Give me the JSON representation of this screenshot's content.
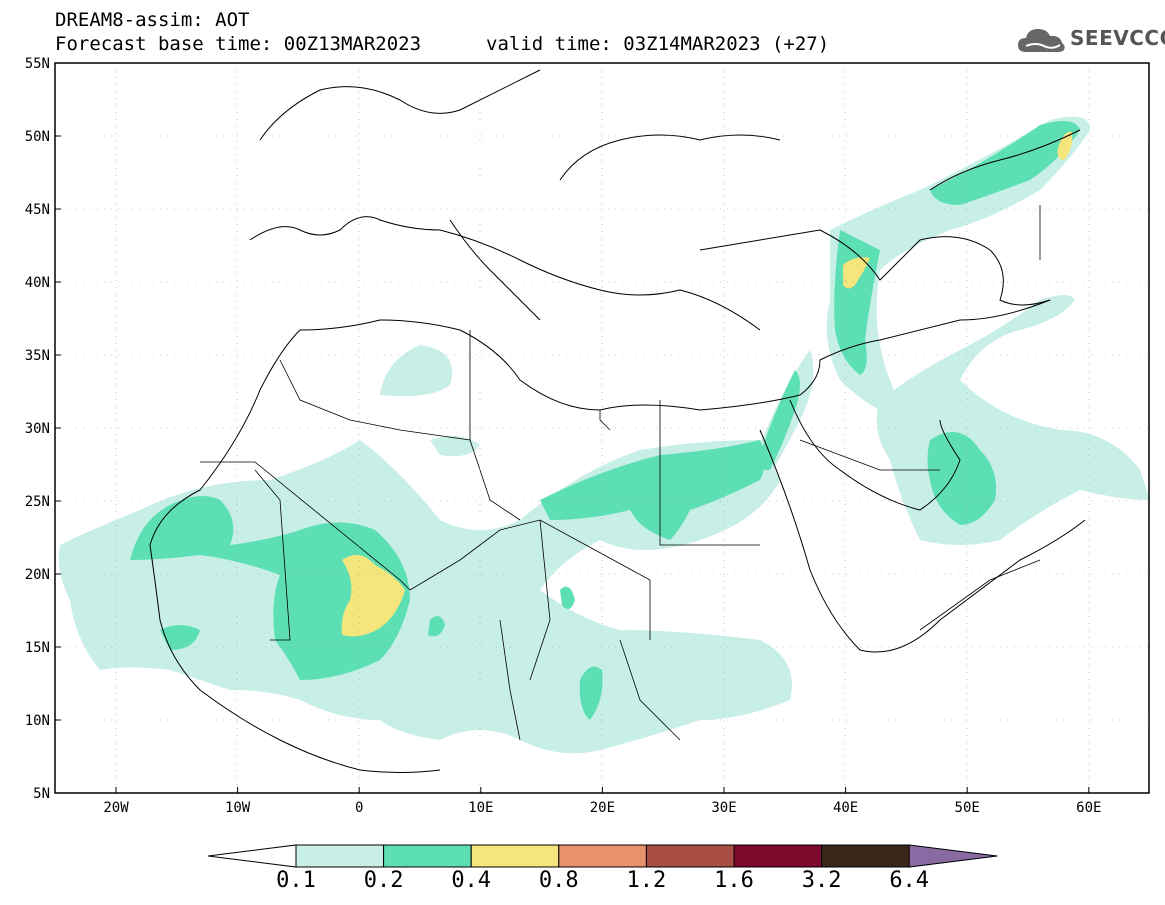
{
  "header": {
    "title_line1": "DREAM8-assim: AOT",
    "title_line2": "Forecast base time: 00Z13MAR2023",
    "valid_time": "valid time: 03Z14MAR2023 (+27)",
    "logo_text": "SEEVCCC",
    "logo_icon": "cloud-icon"
  },
  "map": {
    "lon_labels": [
      "20W",
      "10W",
      "0",
      "10E",
      "20E",
      "30E",
      "40E",
      "50E",
      "60E"
    ],
    "lat_labels": [
      "55N",
      "50N",
      "45N",
      "40N",
      "35N",
      "30N",
      "25N",
      "20N",
      "15N",
      "10N",
      "5N"
    ],
    "region": "North Africa / Middle East",
    "dust_colors": [
      "#c7efe8",
      "#5ddfb4",
      "#f4e57d"
    ]
  },
  "colorbar": {
    "colors": [
      "#c7efe8",
      "#5ddfb4",
      "#f4e57d",
      "#e8916a",
      "#a84e45",
      "#7d0a2c",
      "#3a2718",
      "#8a6aa3"
    ],
    "labels": [
      "0.1",
      "0.2",
      "0.4",
      "0.8",
      "1.2",
      "1.6",
      "3.2",
      "6.4"
    ]
  }
}
